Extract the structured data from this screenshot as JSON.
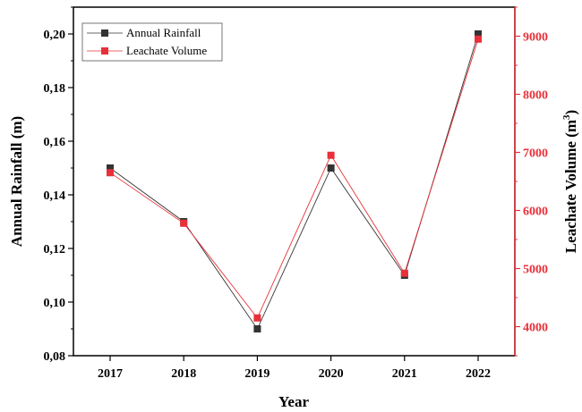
{
  "chart_data": {
    "type": "line",
    "x": [
      "2017",
      "2018",
      "2019",
      "2020",
      "2021",
      "2022"
    ],
    "xlabel": "Year",
    "series": [
      {
        "name": "Annual Rainfall",
        "axis": "left",
        "color": "#333333",
        "values": [
          0.15,
          0.13,
          0.09,
          0.15,
          0.11,
          0.2
        ]
      },
      {
        "name": "Leachate Volume",
        "axis": "right",
        "color": "#e8303a",
        "values": [
          6650,
          5780,
          4150,
          6950,
          4920,
          8950
        ]
      }
    ],
    "y_left": {
      "label": "Annual Rainfall (m)",
      "range": [
        0.08,
        0.21
      ],
      "ticks": [
        0.08,
        0.1,
        0.12,
        0.14,
        0.16,
        0.18,
        0.2
      ],
      "tick_labels": [
        "0,08",
        "0,10",
        "0,12",
        "0,14",
        "0,16",
        "0,18",
        "0,20"
      ]
    },
    "y_right": {
      "label_text": "Leachate Volume (m",
      "label_sup": "3",
      "label_close": ")",
      "range": [
        3500,
        9500
      ],
      "ticks": [
        4000,
        5000,
        6000,
        7000,
        8000,
        9000
      ],
      "tick_labels": [
        "4000",
        "5000",
        "6000",
        "7000",
        "8000",
        "9000"
      ]
    },
    "legend": "top-left",
    "grid": false
  }
}
